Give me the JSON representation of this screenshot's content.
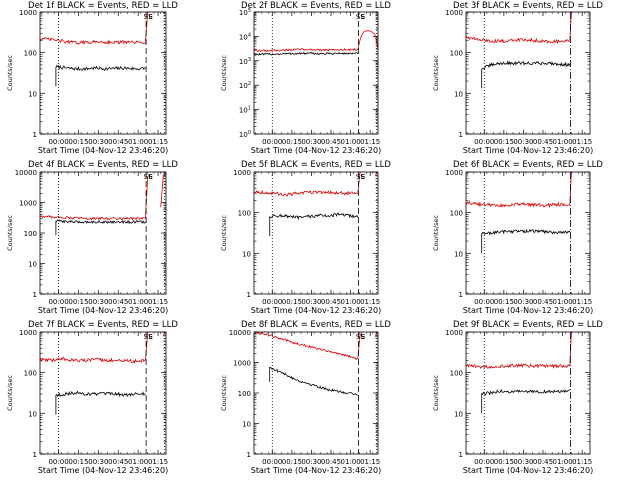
{
  "figure": {
    "xlabel": "Start Time (04-Nov-12 23:46:20)",
    "ylabel": "Counts/sec",
    "colors": {
      "black_series": "#000000",
      "red_series": "#e00000",
      "axes": "#000000"
    }
  },
  "chart_data": [
    {
      "type": "line",
      "title": "Det 1f BLACK = Events, RED = LLD",
      "xlabel": "Start Time (04-Nov-12 23:46:20)",
      "ylabel": "Counts/sec",
      "xlim": [
        0,
        95
      ],
      "ylim": [
        1,
        1000
      ],
      "yscale": "log",
      "xticks": [
        14,
        29,
        44,
        59,
        74,
        89
      ],
      "xtick_labels": [
        "00:00",
        "00:15",
        "00:30",
        "00:45",
        "01:00",
        "01:15"
      ],
      "yticks": [
        1,
        10,
        100,
        1000
      ],
      "ytick_labels": [
        "1",
        "10",
        "100",
        "1000"
      ],
      "dotted_lines": [
        14,
        94
      ],
      "dashed_lines": [
        80
      ],
      "dashdot_lines": [],
      "markers": [
        {
          "label": "SS",
          "x": 81.5
        },
        {
          "label": "E",
          "x": 83.5
        }
      ],
      "series": [
        {
          "color": "#000000",
          "start": 12,
          "end": 79.5,
          "values": [
            45,
            42,
            40,
            40,
            42,
            40,
            41,
            42,
            40,
            41
          ]
        },
        {
          "color": "#e00000",
          "start": 0,
          "end": 79.5,
          "values": [
            220,
            210,
            190,
            175,
            180,
            185,
            180,
            180,
            180,
            175
          ]
        },
        {
          "color": "#e00000",
          "start": 79.5,
          "end": 83,
          "values": [
            180,
            1000,
            1000
          ]
        },
        {
          "color": "#e00000",
          "start": 93,
          "end": 95,
          "values": [
            900,
            1000,
            1000
          ]
        }
      ]
    },
    {
      "type": "line",
      "title": "Det 2f BLACK = Events, RED = LLD",
      "xlabel": "Start Time (04-Nov-12 23:46:20)",
      "ylabel": "Counts/sec",
      "xlim": [
        0,
        95
      ],
      "ylim": [
        1,
        100000
      ],
      "yscale": "log",
      "xticks": [
        14,
        29,
        44,
        59,
        74,
        89
      ],
      "xtick_labels": [
        "00:00",
        "00:15",
        "00:30",
        "00:45",
        "01:00",
        "01:15"
      ],
      "yticks": [
        1,
        10,
        100,
        1000,
        10000,
        100000
      ],
      "ytick_labels": [
        "10^0",
        "10^1",
        "10^2",
        "10^3",
        "10^4",
        "10^5"
      ],
      "dotted_lines": [
        14,
        94
      ],
      "dashed_lines": [
        80
      ],
      "dashdot_lines": [],
      "markers": [
        {
          "label": "SS",
          "x": 81.5
        },
        {
          "label": "E",
          "x": 83.5
        }
      ],
      "series": [
        {
          "color": "#000000",
          "start": 0,
          "end": 79.5,
          "values": [
            1800,
            1850,
            1900,
            1950,
            2000,
            2000,
            1950,
            2000,
            2000,
            2000
          ]
        },
        {
          "color": "#e00000",
          "start": 0,
          "end": 79.5,
          "values": [
            2600,
            2600,
            2700,
            2800,
            2900,
            2900,
            2800,
            2800,
            2900,
            2900
          ]
        },
        {
          "color": "#e00000",
          "start": 79.5,
          "end": 95,
          "values": [
            2900,
            9000,
            15000,
            17000,
            17000,
            15000,
            12000,
            3000
          ]
        }
      ]
    },
    {
      "type": "line",
      "title": "Det 3f BLACK = Events, RED = LLD",
      "xlabel": "Start Time (04-Nov-12 23:46:20)",
      "ylabel": "Counts/sec",
      "xlim": [
        0,
        95
      ],
      "ylim": [
        1,
        1000
      ],
      "yscale": "log",
      "xticks": [
        14,
        29,
        44,
        59,
        74,
        89
      ],
      "xtick_labels": [
        "00:00",
        "00:15",
        "00:30",
        "00:45",
        "01:00",
        "01:15"
      ],
      "yticks": [
        1,
        10,
        100,
        1000
      ],
      "ytick_labels": [
        "1",
        "10",
        "100",
        "1000"
      ],
      "dotted_lines": [
        14
      ],
      "dashed_lines": [],
      "dashdot_lines": [
        80
      ],
      "markers": [],
      "series": [
        {
          "color": "#000000",
          "start": 12,
          "end": 79.5,
          "values": [
            40,
            50,
            55,
            55,
            55,
            55,
            55,
            55,
            52,
            50
          ]
        },
        {
          "color": "#e00000",
          "start": 0,
          "end": 79.5,
          "values": [
            240,
            210,
            195,
            190,
            200,
            210,
            200,
            190,
            190,
            190
          ]
        },
        {
          "color": "#e00000",
          "start": 79.5,
          "end": 82,
          "values": [
            200,
            1000,
            1000
          ]
        }
      ]
    },
    {
      "type": "line",
      "title": "Det 4f BLACK = Events, RED = LLD",
      "xlabel": "Start Time (04-Nov-12 23:46:20)",
      "ylabel": "Counts/sec",
      "xlim": [
        0,
        95
      ],
      "ylim": [
        1,
        10000
      ],
      "yscale": "log",
      "xticks": [
        14,
        29,
        44,
        59,
        74,
        89
      ],
      "xtick_labels": [
        "00:00",
        "00:15",
        "00:30",
        "00:45",
        "01:00",
        "01:15"
      ],
      "yticks": [
        1,
        10,
        100,
        1000,
        10000
      ],
      "ytick_labels": [
        "1",
        "10",
        "100",
        "1000",
        "10000"
      ],
      "dotted_lines": [
        14,
        94
      ],
      "dashed_lines": [
        80
      ],
      "dashdot_lines": [],
      "markers": [
        {
          "label": "SS",
          "x": 81.5
        },
        {
          "label": "E",
          "x": 83.5
        }
      ],
      "series": [
        {
          "color": "#000000",
          "start": 12,
          "end": 79.5,
          "values": [
            250,
            240,
            230,
            230,
            230,
            230,
            230,
            230,
            230,
            230
          ]
        },
        {
          "color": "#e00000",
          "start": 0,
          "end": 79.5,
          "values": [
            350,
            340,
            320,
            310,
            300,
            300,
            300,
            300,
            300,
            310
          ]
        },
        {
          "color": "#e00000",
          "start": 79.5,
          "end": 83,
          "values": [
            300,
            7000,
            8000
          ]
        },
        {
          "color": "#e00000",
          "start": 91,
          "end": 95,
          "values": [
            700,
            8000,
            9000
          ]
        }
      ]
    },
    {
      "type": "line",
      "title": "Det 5f BLACK = Events, RED = LLD",
      "xlabel": "Start Time (04-Nov-12 23:46:20)",
      "ylabel": "Counts/sec",
      "xlim": [
        0,
        95
      ],
      "ylim": [
        1,
        1000
      ],
      "yscale": "log",
      "xticks": [
        14,
        29,
        44,
        59,
        74,
        89
      ],
      "xtick_labels": [
        "00:00",
        "00:15",
        "00:30",
        "00:45",
        "01:00",
        "01:15"
      ],
      "yticks": [
        1,
        10,
        100,
        1000
      ],
      "ytick_labels": [
        "1",
        "10",
        "100",
        "1000"
      ],
      "dotted_lines": [
        14,
        94
      ],
      "dashed_lines": [
        80
      ],
      "dashdot_lines": [],
      "markers": [
        {
          "label": "SS",
          "x": 81.5
        },
        {
          "label": "E",
          "x": 83.5
        }
      ],
      "series": [
        {
          "color": "#000000",
          "start": 12,
          "end": 79.5,
          "values": [
            80,
            85,
            80,
            75,
            80,
            85,
            85,
            90,
            85,
            80
          ]
        },
        {
          "color": "#e00000",
          "start": 0,
          "end": 79.5,
          "values": [
            330,
            310,
            290,
            280,
            300,
            320,
            320,
            310,
            300,
            300
          ]
        },
        {
          "color": "#e00000",
          "start": 79.5,
          "end": 83,
          "values": [
            300,
            1000,
            1000
          ]
        },
        {
          "color": "#e00000",
          "start": 93,
          "end": 95,
          "values": [
            800,
            1000,
            1000
          ]
        }
      ]
    },
    {
      "type": "line",
      "title": "Det 6f BLACK = Events, RED = LLD",
      "xlabel": "Start Time (04-Nov-12 23:46:20)",
      "ylabel": "Counts/sec",
      "xlim": [
        0,
        95
      ],
      "ylim": [
        1,
        1000
      ],
      "yscale": "log",
      "xticks": [
        14,
        29,
        44,
        59,
        74,
        89
      ],
      "xtick_labels": [
        "00:00",
        "00:15",
        "00:30",
        "00:45",
        "01:00",
        "01:15"
      ],
      "yticks": [
        1,
        10,
        100,
        1000
      ],
      "ytick_labels": [
        "1",
        "10",
        "100",
        "1000"
      ],
      "dotted_lines": [
        14
      ],
      "dashed_lines": [],
      "dashdot_lines": [
        80
      ],
      "markers": [],
      "series": [
        {
          "color": "#000000",
          "start": 12,
          "end": 79.5,
          "values": [
            30,
            32,
            34,
            35,
            35,
            35,
            35,
            33,
            33,
            33
          ]
        },
        {
          "color": "#e00000",
          "start": 0,
          "end": 79.5,
          "values": [
            180,
            160,
            155,
            150,
            155,
            160,
            155,
            150,
            160,
            155
          ]
        },
        {
          "color": "#e00000",
          "start": 79.5,
          "end": 82,
          "values": [
            160,
            1000,
            1000
          ]
        }
      ]
    },
    {
      "type": "line",
      "title": "Det 7f BLACK = Events, RED = LLD",
      "xlabel": "Start Time (04-Nov-12 23:46:20)",
      "ylabel": "Counts/sec",
      "xlim": [
        0,
        95
      ],
      "ylim": [
        1,
        1000
      ],
      "yscale": "log",
      "xticks": [
        14,
        29,
        44,
        59,
        74,
        89
      ],
      "xtick_labels": [
        "00:00",
        "00:15",
        "00:30",
        "00:45",
        "01:00",
        "01:15"
      ],
      "yticks": [
        1,
        10,
        100,
        1000
      ],
      "ytick_labels": [
        "1",
        "10",
        "100",
        "1000"
      ],
      "dotted_lines": [
        14,
        94
      ],
      "dashed_lines": [
        80
      ],
      "dashdot_lines": [],
      "markers": [
        {
          "label": "SS",
          "x": 81.5
        },
        {
          "label": "E",
          "x": 83.5
        }
      ],
      "series": [
        {
          "color": "#000000",
          "start": 12,
          "end": 79.5,
          "values": [
            28,
            30,
            32,
            30,
            30,
            30,
            30,
            28,
            30,
            30
          ]
        },
        {
          "color": "#e00000",
          "start": 0,
          "end": 79.5,
          "values": [
            210,
            200,
            220,
            200,
            200,
            210,
            200,
            200,
            190,
            200
          ]
        },
        {
          "color": "#e00000",
          "start": 79.5,
          "end": 83,
          "values": [
            200,
            1000,
            1000
          ]
        },
        {
          "color": "#e00000",
          "start": 93,
          "end": 95,
          "values": [
            800,
            1000,
            1000
          ]
        }
      ]
    },
    {
      "type": "line",
      "title": "Det 8f BLACK = Events, RED = LLD",
      "xlabel": "Start Time (04-Nov-12 23:46:20)",
      "ylabel": "Counts/sec",
      "xlim": [
        0,
        95
      ],
      "ylim": [
        1,
        10000
      ],
      "yscale": "log",
      "xticks": [
        14,
        29,
        44,
        59,
        74,
        89
      ],
      "xtick_labels": [
        "00:00",
        "00:15",
        "00:30",
        "00:45",
        "01:00",
        "01:15"
      ],
      "yticks": [
        1,
        10,
        100,
        1000,
        10000
      ],
      "ytick_labels": [
        "1",
        "10",
        "100",
        "1000",
        "10000"
      ],
      "dotted_lines": [
        14,
        94
      ],
      "dashed_lines": [
        80
      ],
      "dashdot_lines": [],
      "markers": [
        {
          "label": "SS",
          "x": 81.5
        },
        {
          "label": "E",
          "x": 83.5
        }
      ],
      "series": [
        {
          "color": "#000000",
          "start": 12,
          "end": 79.5,
          "values": [
            700,
            500,
            350,
            250,
            200,
            160,
            130,
            110,
            100,
            90
          ]
        },
        {
          "color": "#e00000",
          "start": 0,
          "end": 79.5,
          "values": [
            10000,
            8500,
            6500,
            5000,
            4000,
            3200,
            2600,
            2100,
            1700,
            1300
          ]
        },
        {
          "color": "#e00000",
          "start": 79.5,
          "end": 83,
          "values": [
            1300,
            8000,
            10000
          ]
        },
        {
          "color": "#e00000",
          "start": 93,
          "end": 95,
          "values": [
            7000,
            10000,
            10000
          ]
        }
      ]
    },
    {
      "type": "line",
      "title": "Det 9f BLACK = Events, RED = LLD",
      "xlabel": "Start Time (04-Nov-12 23:46:20)",
      "ylabel": "Counts/sec",
      "xlim": [
        0,
        95
      ],
      "ylim": [
        1,
        1000
      ],
      "yscale": "log",
      "xticks": [
        14,
        29,
        44,
        59,
        74,
        89
      ],
      "xtick_labels": [
        "00:00",
        "00:15",
        "00:30",
        "00:45",
        "01:00",
        "01:15"
      ],
      "yticks": [
        1,
        10,
        100,
        1000
      ],
      "ytick_labels": [
        "1",
        "10",
        "100",
        "1000"
      ],
      "dotted_lines": [
        14
      ],
      "dashed_lines": [],
      "dashdot_lines": [
        80
      ],
      "markers": [],
      "series": [
        {
          "color": "#000000",
          "start": 12,
          "end": 79.5,
          "values": [
            30,
            32,
            35,
            34,
            34,
            35,
            34,
            34,
            35,
            35
          ]
        },
        {
          "color": "#e00000",
          "start": 0,
          "end": 79.5,
          "values": [
            150,
            140,
            140,
            145,
            150,
            150,
            145,
            145,
            145,
            145
          ]
        },
        {
          "color": "#e00000",
          "start": 79.5,
          "end": 82,
          "values": [
            150,
            1000,
            1000
          ]
        }
      ]
    }
  ]
}
